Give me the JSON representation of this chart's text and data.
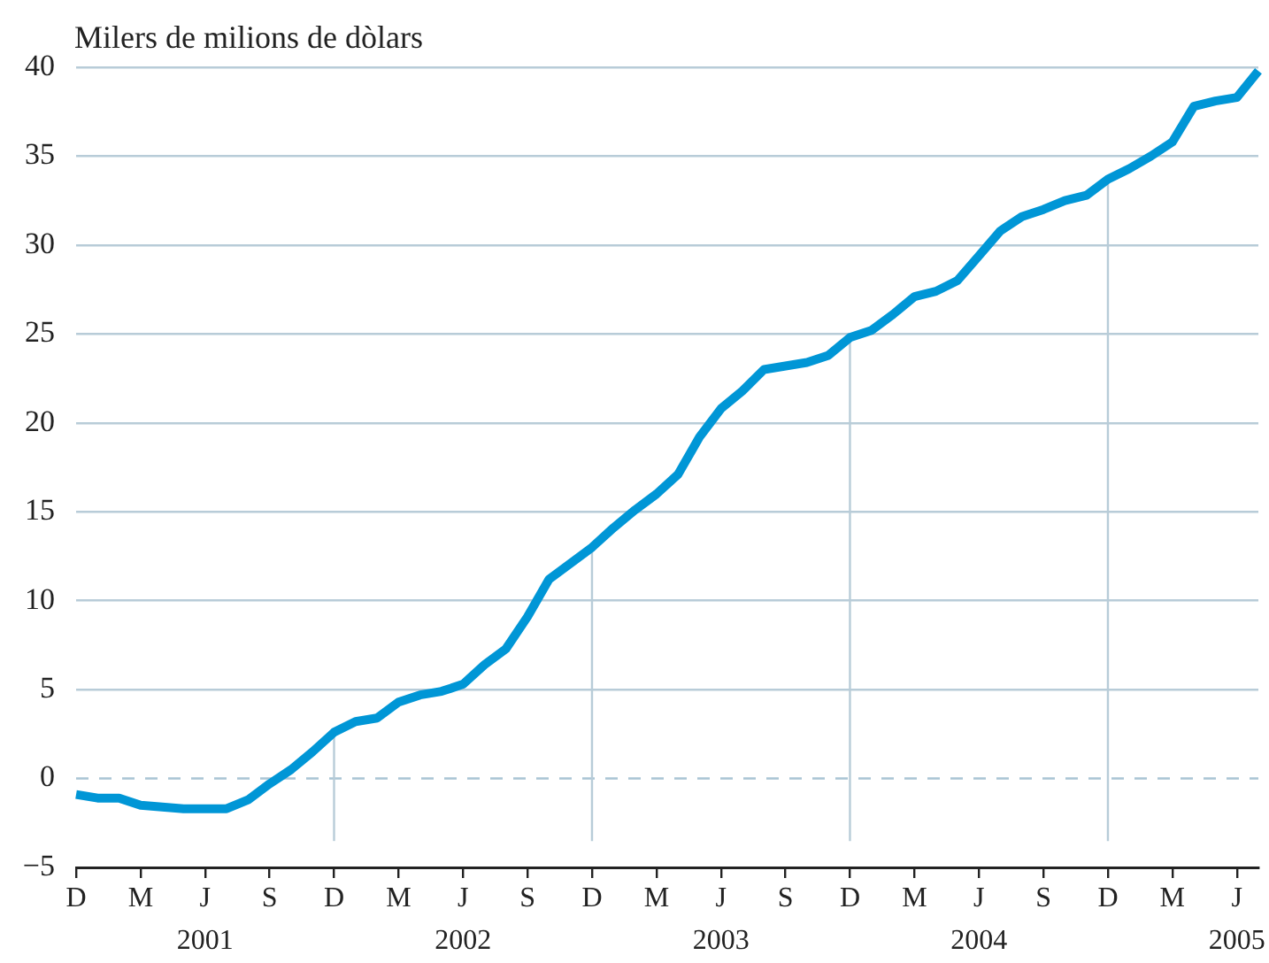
{
  "chart_data": {
    "type": "line",
    "ylabel": "Milers de milions de dòlars",
    "x": [
      "2000-12",
      "2001-01",
      "2001-02",
      "2001-03",
      "2001-04",
      "2001-05",
      "2001-06",
      "2001-07",
      "2001-08",
      "2001-09",
      "2001-10",
      "2001-11",
      "2001-12",
      "2002-01",
      "2002-02",
      "2002-03",
      "2002-04",
      "2002-05",
      "2002-06",
      "2002-07",
      "2002-08",
      "2002-09",
      "2002-10",
      "2002-11",
      "2002-12",
      "2003-01",
      "2003-02",
      "2003-03",
      "2003-04",
      "2003-05",
      "2003-06",
      "2003-07",
      "2003-08",
      "2003-09",
      "2003-10",
      "2003-11",
      "2003-12",
      "2004-01",
      "2004-02",
      "2004-03",
      "2004-04",
      "2004-05",
      "2004-06",
      "2004-07",
      "2004-08",
      "2004-09",
      "2004-10",
      "2004-11",
      "2004-12",
      "2005-01",
      "2005-02",
      "2005-03",
      "2005-04",
      "2005-05",
      "2005-06",
      "2005-07"
    ],
    "series": [
      {
        "color": "#0096d6",
        "values": [
          -0.9,
          -1.1,
          -1.1,
          -1.5,
          -1.6,
          -1.7,
          -1.7,
          -1.7,
          -1.2,
          -0.3,
          0.5,
          1.5,
          2.6,
          3.2,
          3.4,
          4.3,
          4.7,
          4.9,
          5.3,
          6.4,
          7.3,
          9.1,
          11.2,
          12.1,
          13.0,
          14.1,
          15.1,
          16.0,
          17.1,
          19.2,
          20.8,
          21.8,
          23.0,
          23.2,
          23.4,
          23.8,
          24.8,
          25.2,
          26.1,
          27.1,
          27.4,
          28.0,
          29.4,
          30.8,
          31.6,
          32.0,
          32.5,
          32.8,
          33.7,
          34.3,
          35.0,
          35.8,
          37.8,
          38.1,
          38.3,
          39.8
        ]
      }
    ],
    "xlim": [
      "2000-12",
      "2005-07"
    ],
    "xticks": [
      {
        "value": "2000-12",
        "label": "D"
      },
      {
        "value": "2001-03",
        "label": "M"
      },
      {
        "value": "2001-06",
        "label": "J\n2001"
      },
      {
        "value": "2001-09",
        "label": "S"
      },
      {
        "value": "2001-12",
        "label": "D"
      },
      {
        "value": "2002-03",
        "label": "M"
      },
      {
        "value": "2002-06",
        "label": "J\n2002"
      },
      {
        "value": "2002-09",
        "label": "S"
      },
      {
        "value": "2002-12",
        "label": "D"
      },
      {
        "value": "2003-03",
        "label": "M"
      },
      {
        "value": "2003-06",
        "label": "J\n2003"
      },
      {
        "value": "2003-09",
        "label": "S"
      },
      {
        "value": "2003-12",
        "label": "D"
      },
      {
        "value": "2004-03",
        "label": "M"
      },
      {
        "value": "2004-06",
        "label": "J\n2004"
      },
      {
        "value": "2004-09",
        "label": "S"
      },
      {
        "value": "2004-12",
        "label": "D"
      },
      {
        "value": "2005-03",
        "label": "M"
      },
      {
        "value": "2005-06",
        "label": "J\n2005"
      }
    ],
    "ylim": [
      -5,
      40
    ],
    "yticks": [
      {
        "value": -5,
        "label": "−5"
      },
      0,
      5,
      10,
      15,
      20,
      25,
      30,
      35,
      40
    ],
    "ref_lines": [
      {
        "axis": "y",
        "value": 0,
        "color": "#a9c4d4",
        "line_style": "dashed"
      },
      {
        "axis": "x",
        "value": "2001-12",
        "color": "#b8ccd8"
      },
      {
        "axis": "x",
        "value": "2002-12",
        "color": "#b8ccd8"
      },
      {
        "axis": "x",
        "value": "2003-12",
        "color": "#b8ccd8"
      },
      {
        "axis": "x",
        "value": "2004-12",
        "color": "#b8ccd8"
      }
    ],
    "grid": "y",
    "legend": false,
    "marker": "none",
    "line_style": "solid"
  }
}
